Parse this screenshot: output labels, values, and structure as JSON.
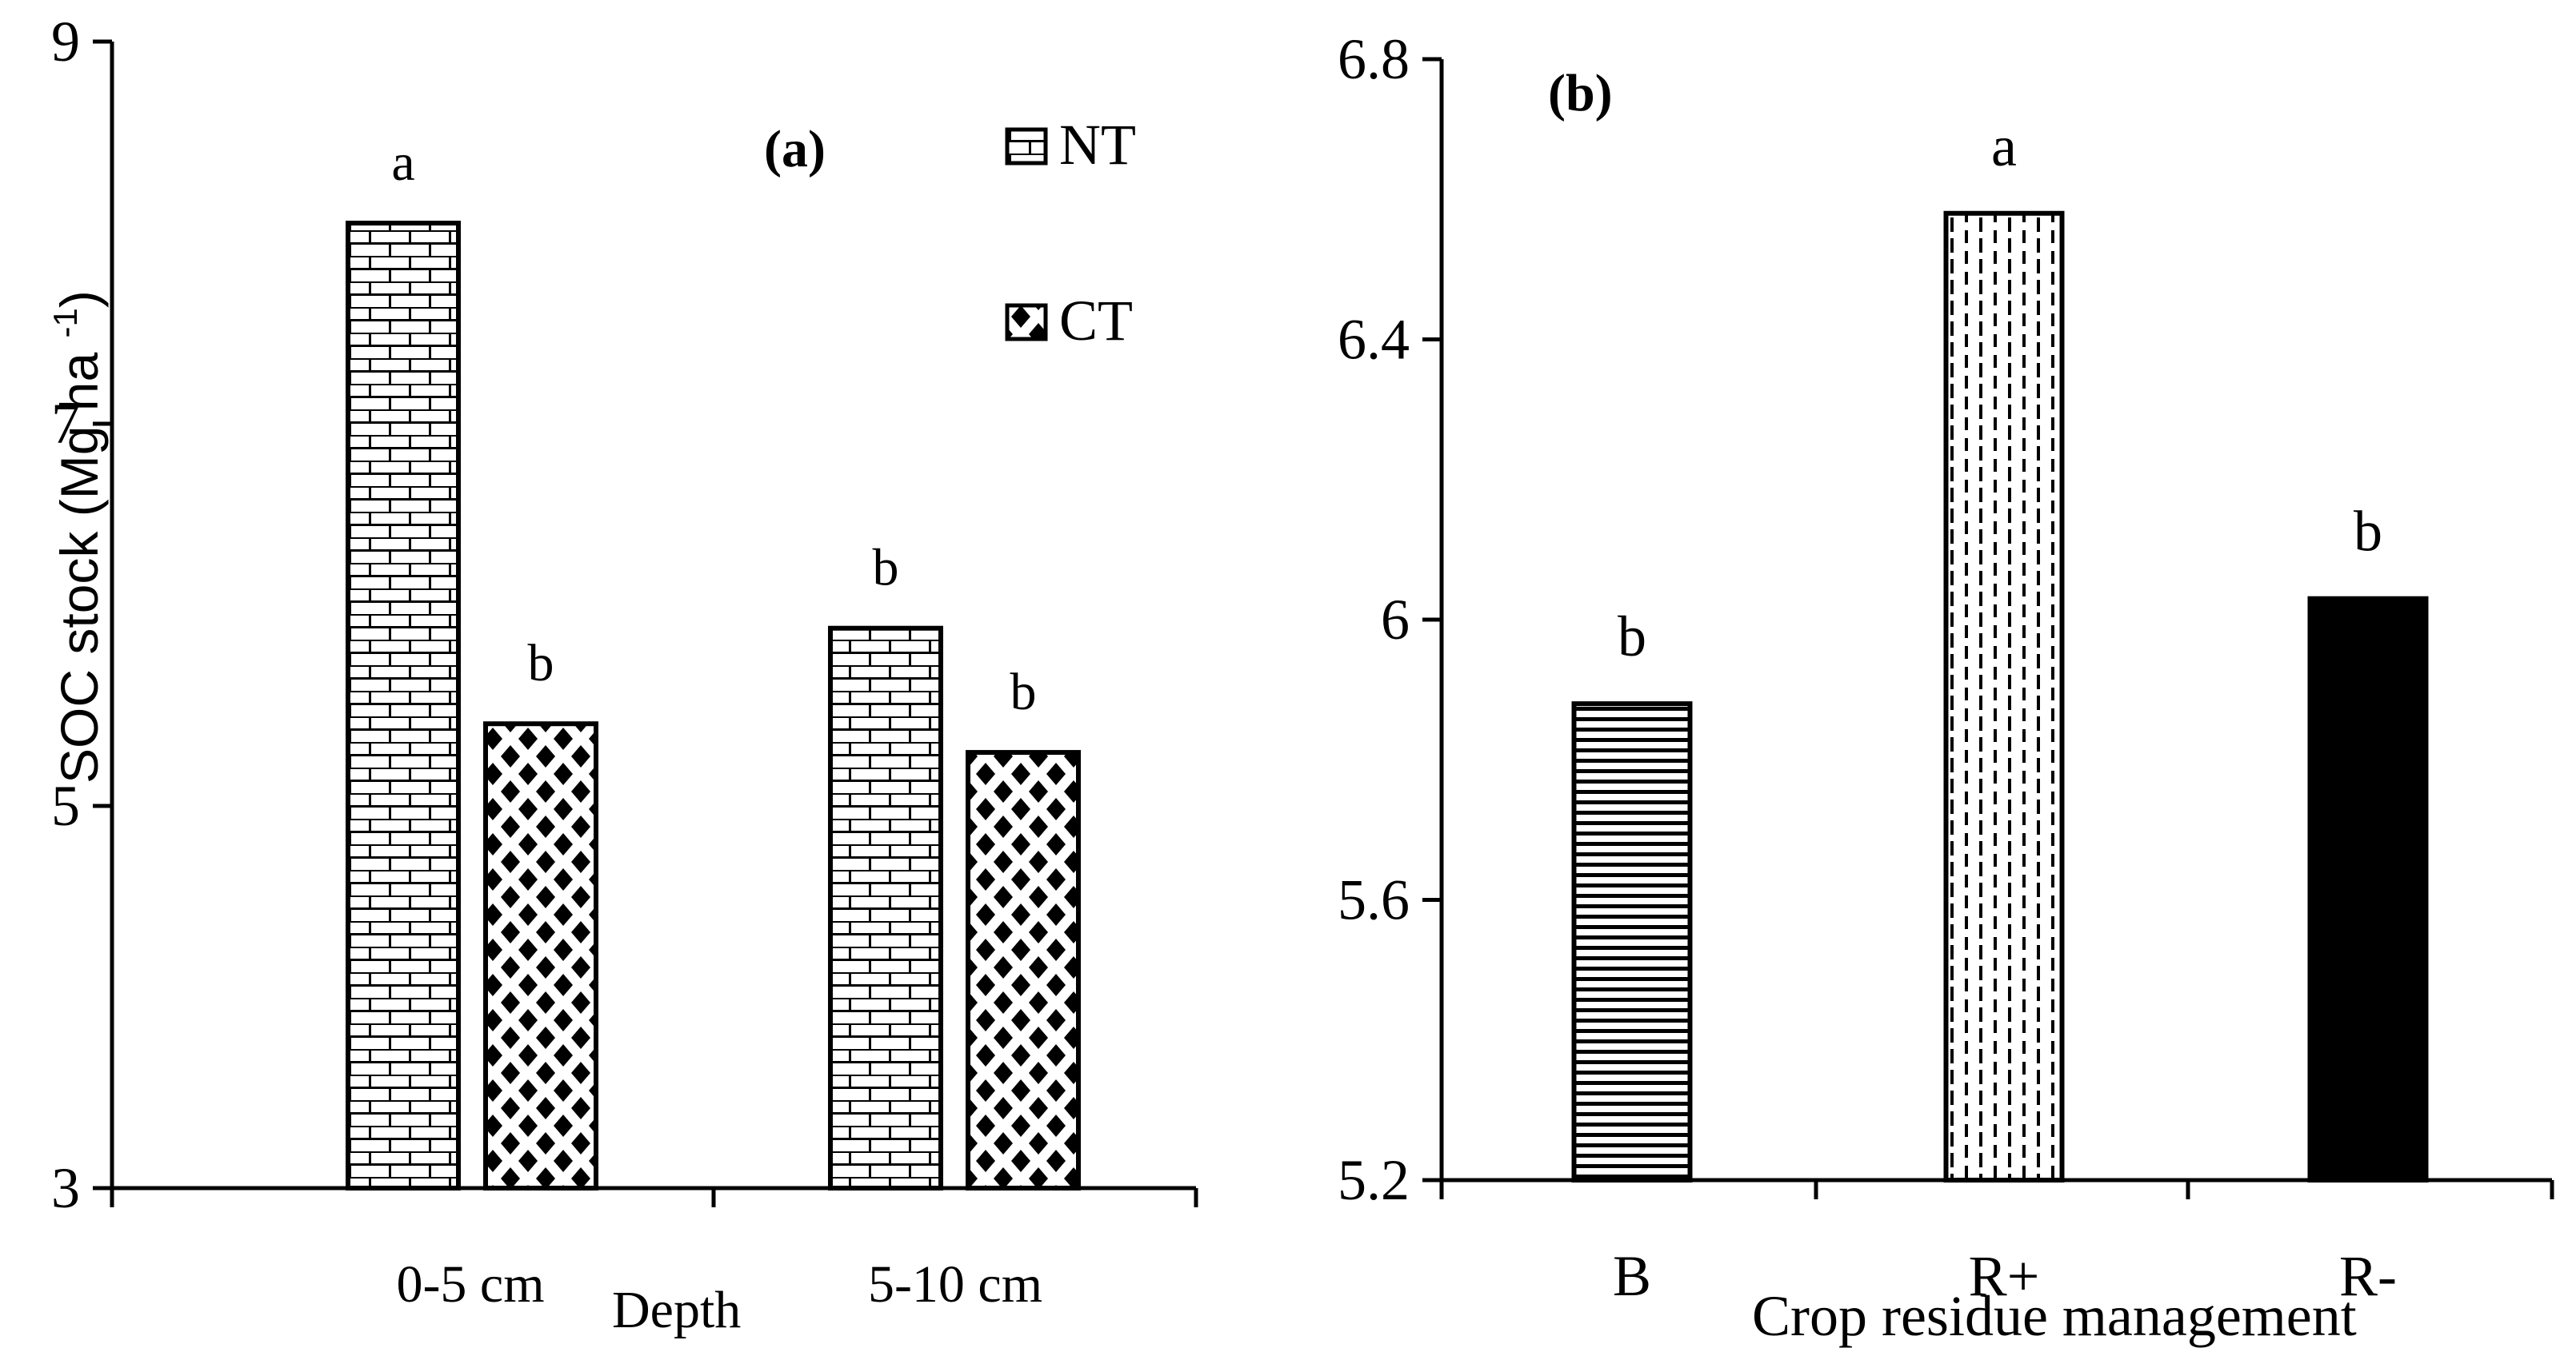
{
  "chart_data": [
    {
      "type": "bar",
      "panel_label": "(a)",
      "categories": [
        "0-5 cm",
        "5-10 cm"
      ],
      "series": [
        {
          "name": "NT",
          "pattern": "brick",
          "values": [
            8.05,
            5.93
          ],
          "letters": [
            "a",
            "b"
          ]
        },
        {
          "name": "CT",
          "pattern": "diamond",
          "values": [
            5.43,
            5.28
          ],
          "letters": [
            "b",
            "b"
          ]
        }
      ],
      "xlabel": "Depth",
      "ylabel": "SOC stock (Mg ha ",
      "ylabel_sup": "-1",
      "ylabel_close": ")",
      "ylim": [
        3,
        9
      ],
      "yticks": [
        "3",
        "5",
        "7",
        "9"
      ],
      "ytick_values": [
        3,
        5,
        7,
        9
      ],
      "legend_position": "top-right"
    },
    {
      "type": "bar",
      "panel_label": "(b)",
      "categories": [
        "B",
        "R+",
        "R-"
      ],
      "values": [
        5.88,
        6.58,
        6.03
      ],
      "letters": [
        "b",
        "a",
        "b"
      ],
      "patterns": [
        "horizontal-lines",
        "dashed-vertical",
        "solid"
      ],
      "xlabel": "Crop residue management",
      "ylim": [
        5.2,
        6.8
      ],
      "yticks": [
        "5.2",
        "5.6",
        "6",
        "6.4",
        "6.8"
      ],
      "ytick_values": [
        5.2,
        5.6,
        6.0,
        6.4,
        6.8
      ]
    }
  ],
  "colors": {
    "ink": "#000000",
    "background": "#ffffff"
  }
}
